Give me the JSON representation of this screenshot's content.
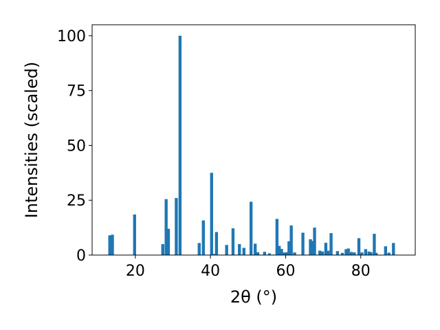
{
  "chart_data": {
    "type": "bar",
    "xlabel": "2θ (°)",
    "ylabel": "Intensities (scaled)",
    "xlim": [
      8.5,
      94.5
    ],
    "ylim": [
      0,
      105
    ],
    "xticks": [
      20,
      40,
      60,
      80
    ],
    "yticks": [
      0,
      25,
      50,
      75,
      100
    ],
    "bar_width": 0.8,
    "bar_color": "#1f77b4",
    "x": [
      13.2,
      13.9,
      19.8,
      27.3,
      28.2,
      28.8,
      30.9,
      31.9,
      37.0,
      38.1,
      40.3,
      40.9,
      41.6,
      44.3,
      46.0,
      47.7,
      48.9,
      50.8,
      51.9,
      52.6,
      54.4,
      55.7,
      56.8,
      57.7,
      58.3,
      58.9,
      59.6,
      60.3,
      60.9,
      61.5,
      62.4,
      64.6,
      66.6,
      67.2,
      67.7,
      69.1,
      69.8,
      70.7,
      71.3,
      72.1,
      73.8,
      75.1,
      76.1,
      76.7,
      77.5,
      78.3,
      79.5,
      80.3,
      81.3,
      82.2,
      82.7,
      83.6,
      84.1,
      86.6,
      87.5,
      88.7
    ],
    "values": [
      9,
      9.3,
      18.5,
      5,
      25.5,
      12,
      26,
      100,
      5.5,
      15.8,
      37.5,
      0.5,
      10.5,
      4.6,
      12.2,
      5,
      3.3,
      24.3,
      5.2,
      1.3,
      1.5,
      0.8,
      0.2,
      16.5,
      4.2,
      2.8,
      1.2,
      1.3,
      6.3,
      13.5,
      1.2,
      10.2,
      7.2,
      6.4,
      12.5,
      2,
      1.6,
      5.6,
      2,
      10,
      1.8,
      1,
      2.7,
      3,
      1.4,
      1.2,
      7.7,
      1.2,
      2.7,
      1.6,
      1.3,
      9.7,
      1,
      4,
      1.1,
      5.5
    ]
  }
}
